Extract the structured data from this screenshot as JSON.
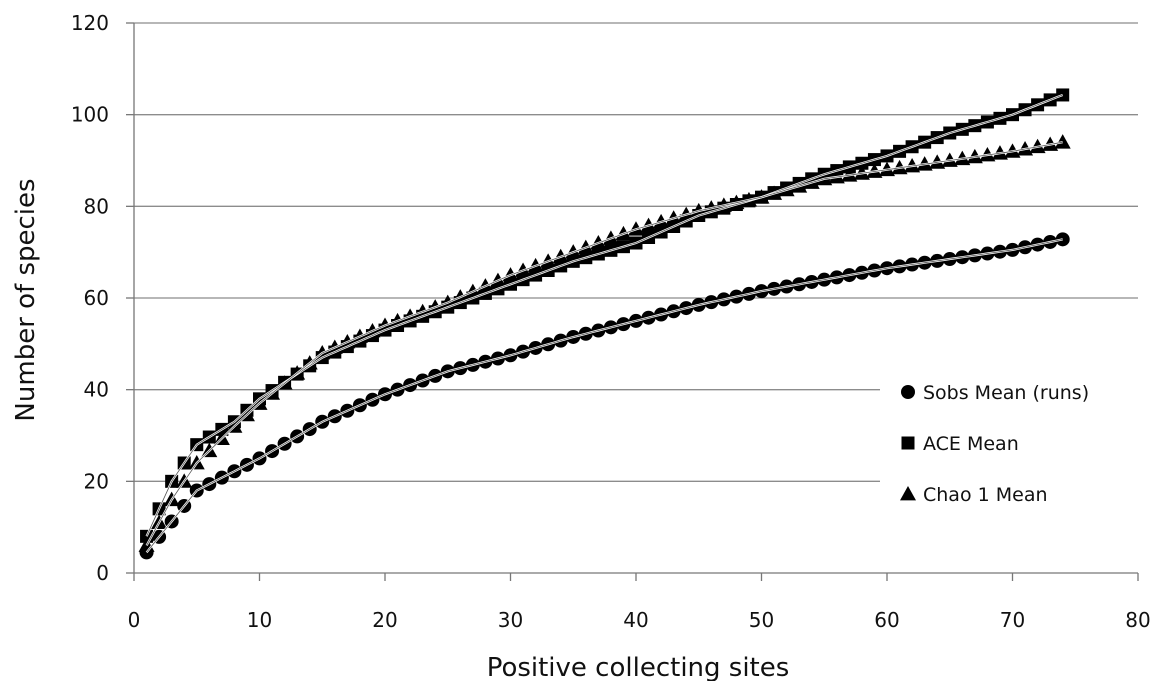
{
  "chart_data": {
    "type": "scatter",
    "title": "",
    "xlabel": "Positive collecting sites",
    "ylabel": "Number of species",
    "xlim": [
      0,
      80
    ],
    "ylim": [
      0,
      120
    ],
    "xticks": [
      0,
      10,
      20,
      30,
      40,
      50,
      60,
      70,
      80
    ],
    "yticks": [
      0,
      20,
      40,
      60,
      80,
      100,
      120
    ],
    "grid": "horizontal",
    "legend_position": "bottom-right",
    "trendlines": true,
    "series": [
      {
        "name": "Sobs Mean (runs)",
        "marker": "circle",
        "color": "#000000",
        "x": [
          1,
          5,
          10,
          15,
          20,
          25,
          30,
          35,
          40,
          45,
          50,
          55,
          60,
          65,
          70,
          74
        ],
        "y": [
          4.5,
          18,
          25,
          33,
          39,
          44,
          47.5,
          51.5,
          55,
          58.5,
          61.5,
          64,
          66.5,
          68.5,
          70.5,
          72.8
        ]
      },
      {
        "name": "ACE Mean",
        "marker": "square",
        "color": "#000000",
        "x": [
          1,
          3,
          5,
          8,
          10,
          15,
          20,
          25,
          30,
          35,
          40,
          45,
          50,
          55,
          60,
          65,
          70,
          74
        ],
        "y": [
          8,
          20,
          28,
          33,
          38,
          47,
          53,
          58,
          63,
          68,
          72,
          78,
          82,
          87,
          91,
          96,
          100,
          104.3
        ]
      },
      {
        "name": "Chao 1 Mean",
        "marker": "triangle",
        "color": "#000000",
        "x": [
          1,
          3,
          5,
          8,
          10,
          15,
          20,
          25,
          30,
          35,
          40,
          45,
          50,
          55,
          60,
          65,
          70,
          74
        ],
        "y": [
          6,
          16,
          24,
          32,
          37,
          48,
          54,
          59,
          65,
          70,
          75,
          79,
          82,
          86,
          88,
          90,
          92,
          94
        ]
      }
    ]
  }
}
